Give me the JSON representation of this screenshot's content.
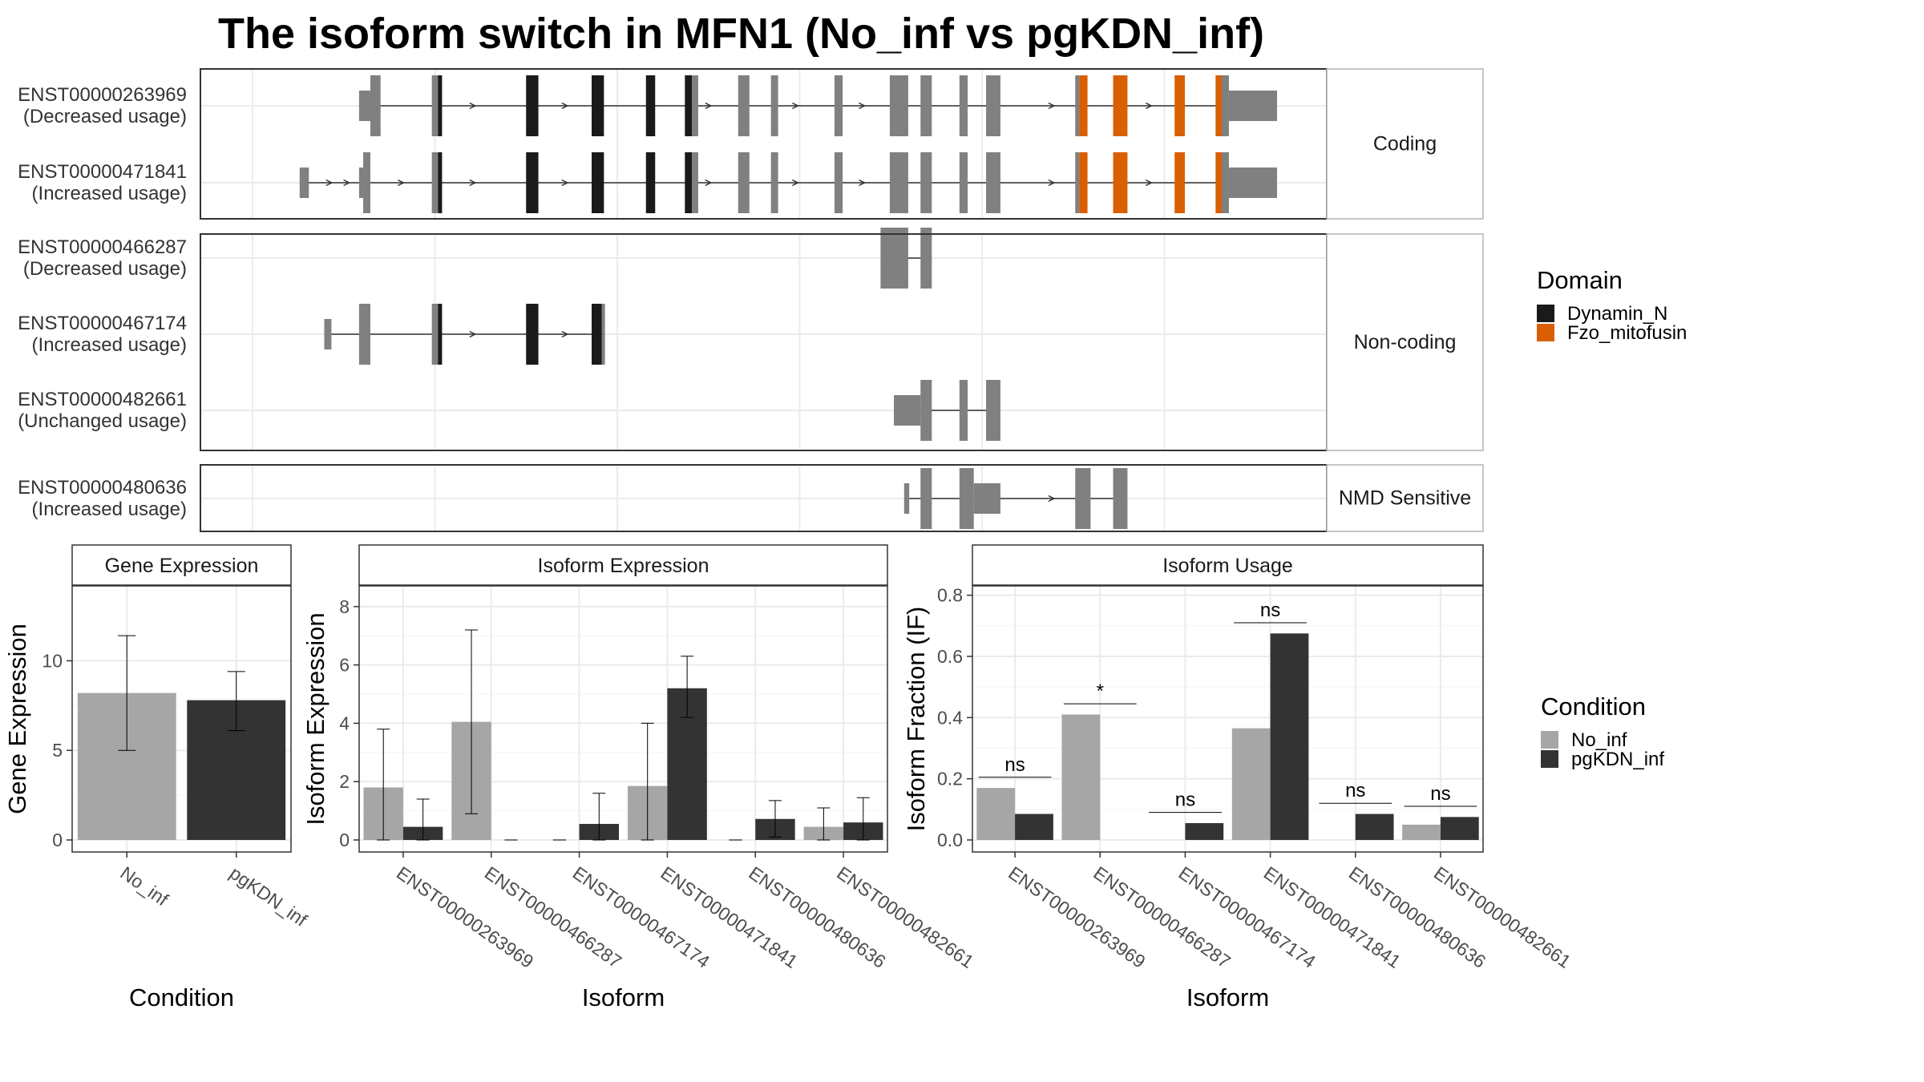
{
  "title": "The isoform switch in MFN1 (No_inf vs pgKDN_inf)",
  "colors": {
    "exon": "#808080",
    "domain_dynamin": "#1a1a1a",
    "domain_fzo": "#d95f02",
    "no_inf": "#a6a6a6",
    "pgkdn_inf": "#333333",
    "grid": "#ebebeb",
    "panel_border": "#333333"
  },
  "gene_model": {
    "groups": [
      {
        "label": "Coding",
        "isoforms": [
          {
            "id": "ENST00000263969",
            "usage": "(Decreased usage)",
            "exons": [
              [
                0.104,
                0.115,
                "m"
              ],
              [
                0.115,
                0.125,
                "t"
              ],
              [
                0.175,
                0.181,
                "t"
              ],
              [
                0.181,
                0.185,
                "d"
              ],
              [
                0.267,
                0.279,
                "d"
              ],
              [
                0.331,
                0.343,
                "d"
              ],
              [
                0.384,
                0.393,
                "d"
              ],
              [
                0.422,
                0.429,
                "d"
              ],
              [
                0.429,
                0.435,
                "t"
              ],
              [
                0.474,
                0.485,
                "t"
              ],
              [
                0.506,
                0.513,
                "t"
              ],
              [
                0.568,
                0.576,
                "t"
              ],
              [
                0.622,
                0.64,
                "t"
              ],
              [
                0.652,
                0.663,
                "t"
              ],
              [
                0.69,
                0.698,
                "t"
              ],
              [
                0.716,
                0.73,
                "t"
              ],
              [
                0.803,
                0.807,
                "t"
              ],
              [
                0.807,
                0.815,
                "f"
              ],
              [
                0.84,
                0.854,
                "f"
              ],
              [
                0.9,
                0.91,
                "f"
              ],
              [
                0.94,
                0.946,
                "f"
              ],
              [
                0.946,
                0.953,
                "t"
              ],
              [
                0.953,
                1.0,
                "m"
              ]
            ],
            "arrows": [
              0.215,
              0.305,
              0.445,
              0.53,
              0.595,
              0.78,
              0.875,
              0.975
            ]
          },
          {
            "id": "ENST00000471841",
            "usage": "(Increased usage)",
            "exons": [
              [
                0.046,
                0.055,
                "m"
              ],
              [
                0.104,
                0.108,
                "m"
              ],
              [
                0.108,
                0.115,
                "t"
              ],
              [
                0.175,
                0.181,
                "t"
              ],
              [
                0.181,
                0.185,
                "d"
              ],
              [
                0.267,
                0.279,
                "d"
              ],
              [
                0.331,
                0.343,
                "d"
              ],
              [
                0.384,
                0.393,
                "d"
              ],
              [
                0.422,
                0.429,
                "d"
              ],
              [
                0.429,
                0.435,
                "t"
              ],
              [
                0.474,
                0.485,
                "t"
              ],
              [
                0.506,
                0.513,
                "t"
              ],
              [
                0.568,
                0.576,
                "t"
              ],
              [
                0.622,
                0.64,
                "t"
              ],
              [
                0.652,
                0.663,
                "t"
              ],
              [
                0.69,
                0.698,
                "t"
              ],
              [
                0.716,
                0.73,
                "t"
              ],
              [
                0.803,
                0.807,
                "t"
              ],
              [
                0.807,
                0.815,
                "f"
              ],
              [
                0.84,
                0.854,
                "f"
              ],
              [
                0.9,
                0.91,
                "f"
              ],
              [
                0.94,
                0.946,
                "f"
              ],
              [
                0.946,
                0.953,
                "t"
              ],
              [
                0.953,
                1.0,
                "m"
              ]
            ],
            "arrows": [
              0.075,
              0.092,
              0.145,
              0.215,
              0.305,
              0.445,
              0.53,
              0.595,
              0.78,
              0.875,
              0.975
            ]
          }
        ]
      },
      {
        "label": "Non-coding",
        "isoforms": [
          {
            "id": "ENST00000466287",
            "usage": "(Decreased usage)",
            "exons": [
              [
                0.613,
                0.64,
                "t"
              ],
              [
                0.652,
                0.663,
                "t"
              ]
            ],
            "arrows": []
          },
          {
            "id": "ENST00000467174",
            "usage": "(Increased usage)",
            "exons": [
              [
                0.07,
                0.077,
                "m"
              ],
              [
                0.104,
                0.115,
                "t"
              ],
              [
                0.175,
                0.181,
                "t"
              ],
              [
                0.181,
                0.185,
                "d"
              ],
              [
                0.267,
                0.279,
                "d"
              ],
              [
                0.331,
                0.341,
                "d"
              ],
              [
                0.341,
                0.344,
                "t"
              ]
            ],
            "arrows": [
              0.215,
              0.305
            ]
          },
          {
            "id": "ENST00000482661",
            "usage": "(Unchanged usage)",
            "exons": [
              [
                0.626,
                0.652,
                "m"
              ],
              [
                0.652,
                0.663,
                "t"
              ],
              [
                0.69,
                0.698,
                "t"
              ],
              [
                0.716,
                0.73,
                "t"
              ]
            ],
            "arrows": []
          }
        ]
      },
      {
        "label": "NMD Sensitive",
        "isoforms": [
          {
            "id": "ENST00000480636",
            "usage": "(Increased usage)",
            "exons": [
              [
                0.636,
                0.641,
                "m"
              ],
              [
                0.652,
                0.663,
                "t"
              ],
              [
                0.69,
                0.704,
                "t"
              ],
              [
                0.704,
                0.73,
                "m"
              ],
              [
                0.803,
                0.818,
                "t"
              ],
              [
                0.84,
                0.854,
                "t"
              ]
            ],
            "arrows": [
              0.78
            ]
          }
        ]
      }
    ],
    "domain_legend": {
      "title": "Domain",
      "items": [
        {
          "name": "Dynamin_N",
          "color": "#1a1a1a"
        },
        {
          "name": "Fzo_mitofusin",
          "color": "#d95f02"
        }
      ]
    }
  },
  "chart_data": [
    {
      "type": "bar",
      "title": "Gene Expression",
      "xlabel": "Condition",
      "ylabel": "Gene Expression",
      "ylim": [
        0,
        14
      ],
      "yticks": [
        0,
        5,
        10
      ],
      "categories": [
        "No_inf",
        "pgKDN_inf"
      ],
      "values": [
        8.2,
        7.8
      ],
      "errors": [
        [
          5.0,
          11.4
        ],
        [
          6.1,
          9.4
        ]
      ]
    },
    {
      "type": "bar",
      "title": "Isoform Expression",
      "xlabel": "Isoform",
      "ylabel": "Isoform Expression",
      "ylim": [
        0,
        8.6
      ],
      "yticks": [
        0,
        2,
        4,
        6,
        8
      ],
      "categories": [
        "ENST00000263969",
        "ENST00000466287",
        "ENST00000467174",
        "ENST00000471841",
        "ENST00000480636",
        "ENST00000482661"
      ],
      "series": [
        {
          "name": "No_inf",
          "values": [
            1.8,
            4.05,
            0,
            1.85,
            0,
            0.45
          ],
          "errors": [
            [
              0,
              3.8
            ],
            [
              0.9,
              7.2
            ],
            [
              0,
              0
            ],
            [
              0,
              4.0
            ],
            [
              0,
              0
            ],
            [
              0,
              1.1
            ]
          ]
        },
        {
          "name": "pgKDN_inf",
          "values": [
            0.45,
            0,
            0.55,
            5.2,
            0.72,
            0.6
          ],
          "errors": [
            [
              0,
              1.4
            ],
            [
              0,
              0
            ],
            [
              0,
              1.6
            ],
            [
              4.2,
              6.3
            ],
            [
              0.1,
              1.35
            ],
            [
              0,
              1.45
            ]
          ]
        }
      ]
    },
    {
      "type": "bar",
      "title": "Isoform Usage",
      "xlabel": "Isoform",
      "ylabel": "Isoform Fraction (IF)",
      "ylim": [
        0,
        0.82
      ],
      "yticks": [
        "0.0",
        "0.2",
        "0.4",
        "0.6",
        "0.8"
      ],
      "categories": [
        "ENST00000263969",
        "ENST00000466287",
        "ENST00000467174",
        "ENST00000471841",
        "ENST00000480636",
        "ENST00000482661"
      ],
      "series": [
        {
          "name": "No_inf",
          "values": [
            0.17,
            0.41,
            0,
            0.365,
            0,
            0.05
          ]
        },
        {
          "name": "pgKDN_inf",
          "values": [
            0.085,
            0,
            0.055,
            0.675,
            0.085,
            0.075
          ]
        }
      ],
      "significance": [
        {
          "label": "ns",
          "y": 0.205
        },
        {
          "label": "*",
          "y": 0.445
        },
        {
          "label": "ns",
          "y": 0.09
        },
        {
          "label": "ns",
          "y": 0.71
        },
        {
          "label": "ns",
          "y": 0.12
        },
        {
          "label": "ns",
          "y": 0.11
        }
      ]
    }
  ],
  "condition_legend": {
    "title": "Condition",
    "items": [
      {
        "name": "No_inf",
        "color": "#a6a6a6"
      },
      {
        "name": "pgKDN_inf",
        "color": "#333333"
      }
    ]
  }
}
